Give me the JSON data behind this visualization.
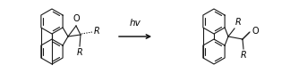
{
  "background_color": "#ffffff",
  "line_color": "#1a1a1a",
  "text_color": "#000000",
  "arrow_color": "#000000",
  "hv_text": "hv",
  "label_R": "R",
  "label_O_epoxide": "O",
  "label_O_carbonyl": "O",
  "fig_width": 3.24,
  "fig_height": 0.82,
  "dpi": 100
}
